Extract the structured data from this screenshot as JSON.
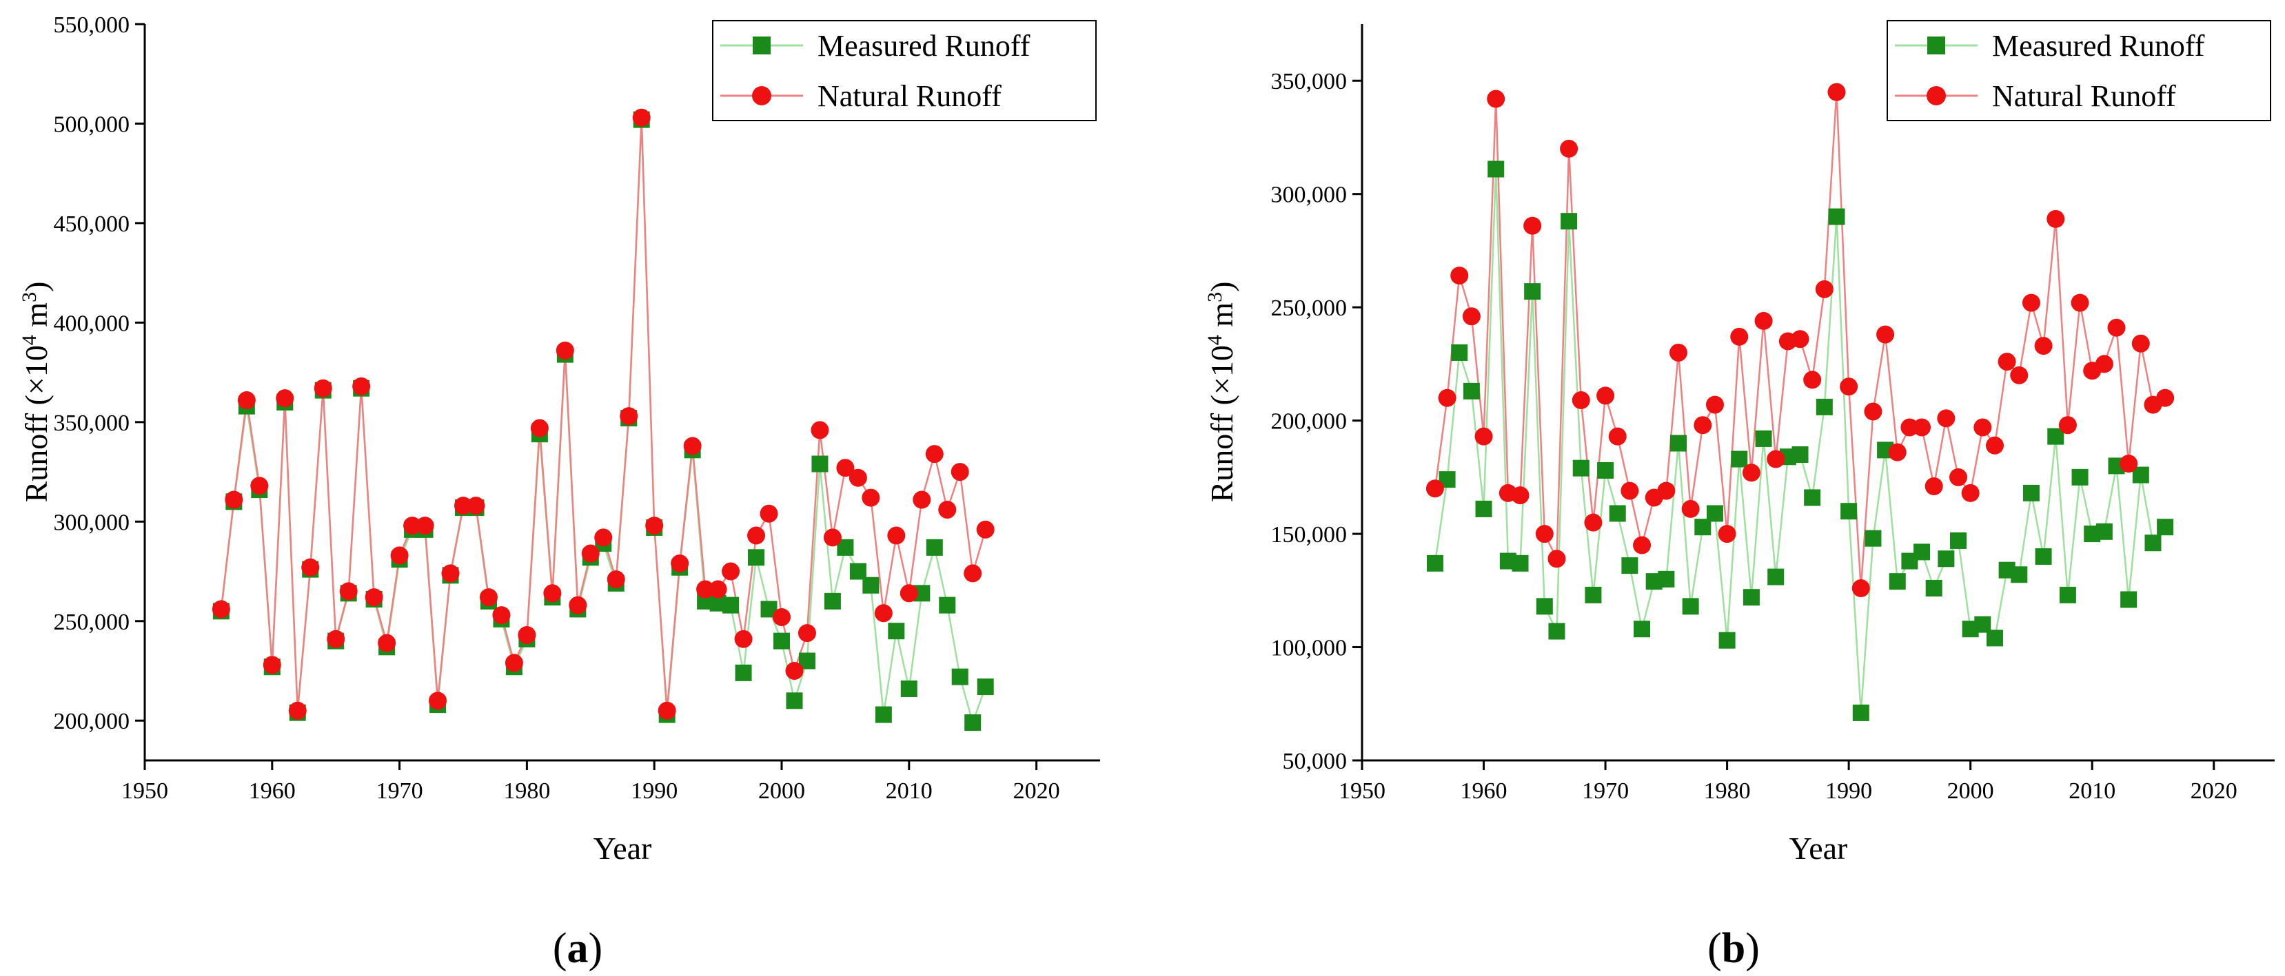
{
  "chart_data": [
    {
      "type": "line",
      "panel_label": {
        "open": "(",
        "letter": "a",
        "close": ")"
      },
      "xlabel": "Year",
      "ylabel": {
        "main": "Runoff (×10",
        "sup1": "4",
        "mid": " m",
        "sup2": "3",
        "end": ")"
      },
      "xlim": [
        1950,
        2025
      ],
      "ylim": [
        180000,
        550000
      ],
      "xticks": [
        1950,
        1960,
        1970,
        1980,
        1990,
        2000,
        2010,
        2020
      ],
      "yticks": [
        200000,
        250000,
        300000,
        350000,
        400000,
        450000,
        500000,
        550000
      ],
      "ytick_labels": [
        "200,000",
        "250,000",
        "300,000",
        "350,000",
        "400,000",
        "450,000",
        "500,000",
        "550,000"
      ],
      "legend_position": "top-right",
      "x": [
        1956,
        1957,
        1958,
        1959,
        1960,
        1961,
        1962,
        1963,
        1964,
        1965,
        1966,
        1967,
        1968,
        1969,
        1970,
        1971,
        1972,
        1973,
        1974,
        1975,
        1976,
        1977,
        1978,
        1979,
        1980,
        1981,
        1982,
        1983,
        1984,
        1985,
        1986,
        1987,
        1988,
        1989,
        1990,
        1991,
        1992,
        1993,
        1994,
        1995,
        1996,
        1997,
        1998,
        1999,
        2000,
        2001,
        2002,
        2003,
        2004,
        2005,
        2006,
        2007,
        2008,
        2009,
        2010,
        2011,
        2012,
        2013,
        2014,
        2015,
        2016
      ],
      "series": [
        {
          "name": "Measured Runoff",
          "color": "#1a8a1a",
          "line_color": "#9ee09e",
          "marker": "square",
          "values": [
            255000,
            310000,
            358000,
            316000,
            227000,
            360000,
            204000,
            276000,
            366000,
            240000,
            264000,
            367000,
            261000,
            237000,
            281000,
            296000,
            296000,
            208000,
            273000,
            307000,
            307000,
            260000,
            251000,
            227000,
            241000,
            344000,
            262000,
            384000,
            256000,
            282000,
            289000,
            269000,
            352000,
            502000,
            297000,
            203000,
            277000,
            336000,
            260000,
            259000,
            258000,
            224000,
            282000,
            256000,
            240000,
            210000,
            230000,
            329000,
            260000,
            287000,
            275000,
            268000,
            203000,
            245000,
            216000,
            264000,
            287000,
            258000,
            222000,
            199000,
            217000
          ]
        },
        {
          "name": "Natural Runoff",
          "color": "#ee1111",
          "line_color": "#f08080",
          "marker": "circle",
          "values": [
            256000,
            311000,
            361000,
            318000,
            228000,
            362000,
            205000,
            277000,
            367000,
            241000,
            265000,
            368000,
            262000,
            239000,
            283000,
            298000,
            298000,
            210000,
            274000,
            308000,
            308000,
            262000,
            253000,
            229000,
            243000,
            347000,
            264000,
            386000,
            258000,
            284000,
            292000,
            271000,
            353000,
            503000,
            298000,
            205000,
            279000,
            338000,
            266000,
            266000,
            275000,
            241000,
            293000,
            304000,
            252000,
            225000,
            244000,
            346000,
            292000,
            327000,
            322000,
            312000,
            254000,
            293000,
            264000,
            311000,
            334000,
            306000,
            325000,
            274000,
            296000
          ]
        }
      ]
    },
    {
      "type": "line",
      "panel_label": {
        "open": "(",
        "letter": "b",
        "close": ")"
      },
      "xlabel": "Year",
      "ylabel": {
        "main": "Runoff (×10",
        "sup1": "4",
        "mid": " m",
        "sup2": "3",
        "end": ")"
      },
      "xlim": [
        1950,
        2025
      ],
      "ylim": [
        50000,
        375000
      ],
      "xticks": [
        1950,
        1960,
        1970,
        1980,
        1990,
        2000,
        2010,
        2020
      ],
      "yticks": [
        50000,
        100000,
        150000,
        200000,
        250000,
        300000,
        350000
      ],
      "ytick_labels": [
        "50,000",
        "100,000",
        "150,000",
        "200,000",
        "250,000",
        "300,000",
        "350,000"
      ],
      "legend_position": "top-right",
      "x": [
        1956,
        1957,
        1958,
        1959,
        1960,
        1961,
        1962,
        1963,
        1964,
        1965,
        1966,
        1967,
        1968,
        1969,
        1970,
        1971,
        1972,
        1973,
        1974,
        1975,
        1976,
        1977,
        1978,
        1979,
        1980,
        1981,
        1982,
        1983,
        1984,
        1985,
        1986,
        1987,
        1988,
        1989,
        1990,
        1991,
        1992,
        1993,
        1994,
        1995,
        1996,
        1997,
        1998,
        1999,
        2000,
        2001,
        2002,
        2003,
        2004,
        2005,
        2006,
        2007,
        2008,
        2009,
        2010,
        2011,
        2012,
        2013,
        2014,
        2015,
        2016
      ],
      "series": [
        {
          "name": "Measured Runoff",
          "color": "#1a8a1a",
          "line_color": "#9ee09e",
          "marker": "square",
          "values": [
            137000,
            174000,
            230000,
            213000,
            161000,
            311000,
            138000,
            137000,
            257000,
            118000,
            107000,
            288000,
            179000,
            123000,
            178000,
            159000,
            136000,
            108000,
            129000,
            130000,
            190000,
            118000,
            153000,
            159000,
            103000,
            183000,
            122000,
            192000,
            131000,
            184000,
            185000,
            166000,
            206000,
            290000,
            160000,
            71000,
            148000,
            187000,
            129000,
            138000,
            142000,
            126000,
            139000,
            147000,
            108000,
            110000,
            104000,
            134000,
            132000,
            168000,
            140000,
            193000,
            123000,
            175000,
            150000,
            151000,
            180000,
            121000,
            176000,
            146000,
            153000
          ]
        },
        {
          "name": "Natural Runoff",
          "color": "#ee1111",
          "line_color": "#f08080",
          "marker": "circle",
          "values": [
            170000,
            210000,
            264000,
            246000,
            193000,
            342000,
            168000,
            167000,
            286000,
            150000,
            139000,
            320000,
            209000,
            155000,
            211000,
            193000,
            169000,
            145000,
            166000,
            169000,
            230000,
            161000,
            198000,
            207000,
            150000,
            237000,
            177000,
            244000,
            183000,
            235000,
            236000,
            218000,
            258000,
            345000,
            215000,
            126000,
            204000,
            238000,
            186000,
            197000,
            197000,
            171000,
            201000,
            175000,
            168000,
            197000,
            189000,
            226000,
            220000,
            252000,
            233000,
            289000,
            198000,
            252000,
            222000,
            225000,
            241000,
            181000,
            234000,
            207000,
            210000
          ]
        }
      ]
    }
  ]
}
